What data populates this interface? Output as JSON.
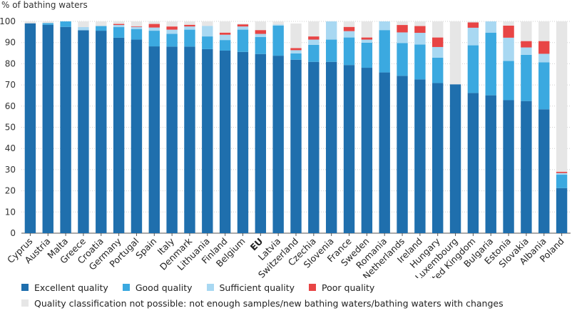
{
  "chart_data": {
    "type": "bar",
    "stacked": true,
    "ylabel": "% of bathing waters",
    "ylim": [
      0,
      100
    ],
    "yticks": [
      0,
      10,
      20,
      30,
      40,
      50,
      60,
      70,
      80,
      90,
      100
    ],
    "grid": true,
    "highlight_category": "EU",
    "categories": [
      "Cyprus",
      "Austria",
      "Malta",
      "Greece",
      "Croatia",
      "Germany",
      "Portugal",
      "Spain",
      "Italy",
      "Denmark",
      "Lithuania",
      "Finland",
      "Belgium",
      "EU",
      "Latvia",
      "Switzerland",
      "Czechia",
      "Slovenia",
      "France",
      "Sweden",
      "Romania",
      "Netherlands",
      "Ireland",
      "Hungary",
      "Luxembourg",
      "United Kingdom",
      "Bulgaria",
      "Estonia",
      "Slovakia",
      "Albania",
      "Poland"
    ],
    "series": [
      {
        "name": "Excellent quality",
        "color": "#1f6fad",
        "values": [
          99.1,
          98.4,
          97.4,
          95.8,
          95.6,
          92.3,
          91.4,
          88.2,
          88.1,
          88.1,
          86.9,
          86.2,
          85.6,
          84.6,
          83.8,
          81.9,
          80.9,
          80.9,
          79.4,
          78.1,
          75.9,
          74.3,
          72.6,
          70.9,
          70.3,
          66.2,
          65.1,
          62.8,
          62.4,
          58.5,
          21.3
        ]
      },
      {
        "name": "Good quality",
        "color": "#3ba9e0",
        "values": [
          0,
          0.8,
          2.6,
          0,
          2.2,
          5,
          5,
          7.4,
          6,
          8,
          6,
          5,
          10.5,
          8,
          14.2,
          3,
          8,
          10.5,
          13,
          11.8,
          20,
          15.5,
          16.5,
          12,
          0,
          22.5,
          29.6,
          18.5,
          21.8,
          22.2,
          6.3
        ]
      },
      {
        "name": "Sufficient quality",
        "color": "#a8d8f2",
        "values": [
          0,
          0,
          0,
          1.5,
          0,
          1,
          1,
          1.5,
          2,
          1.5,
          5,
          2.5,
          1.5,
          1.5,
          0.5,
          1.5,
          2.5,
          8.6,
          3,
          1.5,
          4.1,
          5,
          5.5,
          5,
          0,
          8.3,
          5.3,
          11,
          3.5,
          4,
          0.8
        ]
      },
      {
        "name": "Poor quality",
        "color": "#e84545",
        "values": [
          0,
          0,
          0,
          0,
          0,
          0.5,
          0.3,
          1.7,
          1.5,
          0.8,
          0,
          1,
          1,
          1.8,
          0,
          1,
          1.5,
          0,
          2,
          1,
          0,
          3.5,
          3.2,
          4.5,
          0,
          2.5,
          0,
          5.7,
          3,
          6,
          0.6
        ]
      },
      {
        "name": "Quality classification not possible: not enough samples/new bathing waters/bathing waters with changes",
        "color": "#e6e6e6",
        "values": [
          0.9,
          0.8,
          0,
          2.7,
          2.2,
          1.2,
          2.3,
          1.2,
          2.4,
          1.6,
          2.1,
          5.3,
          0.4,
          4.1,
          1.5,
          11.6,
          7.1,
          0,
          2.6,
          7.6,
          0,
          1.7,
          2.2,
          7.6,
          29.7,
          0.5,
          0,
          2,
          9.3,
          9.3,
          71
        ]
      }
    ],
    "legend_rows": [
      [
        "Excellent quality",
        "Good quality",
        "Sufficient quality",
        "Poor quality"
      ],
      [
        "Quality classification not possible: not enough samples/new bathing waters/bathing waters with changes"
      ]
    ],
    "legend_placement": "bottom"
  }
}
